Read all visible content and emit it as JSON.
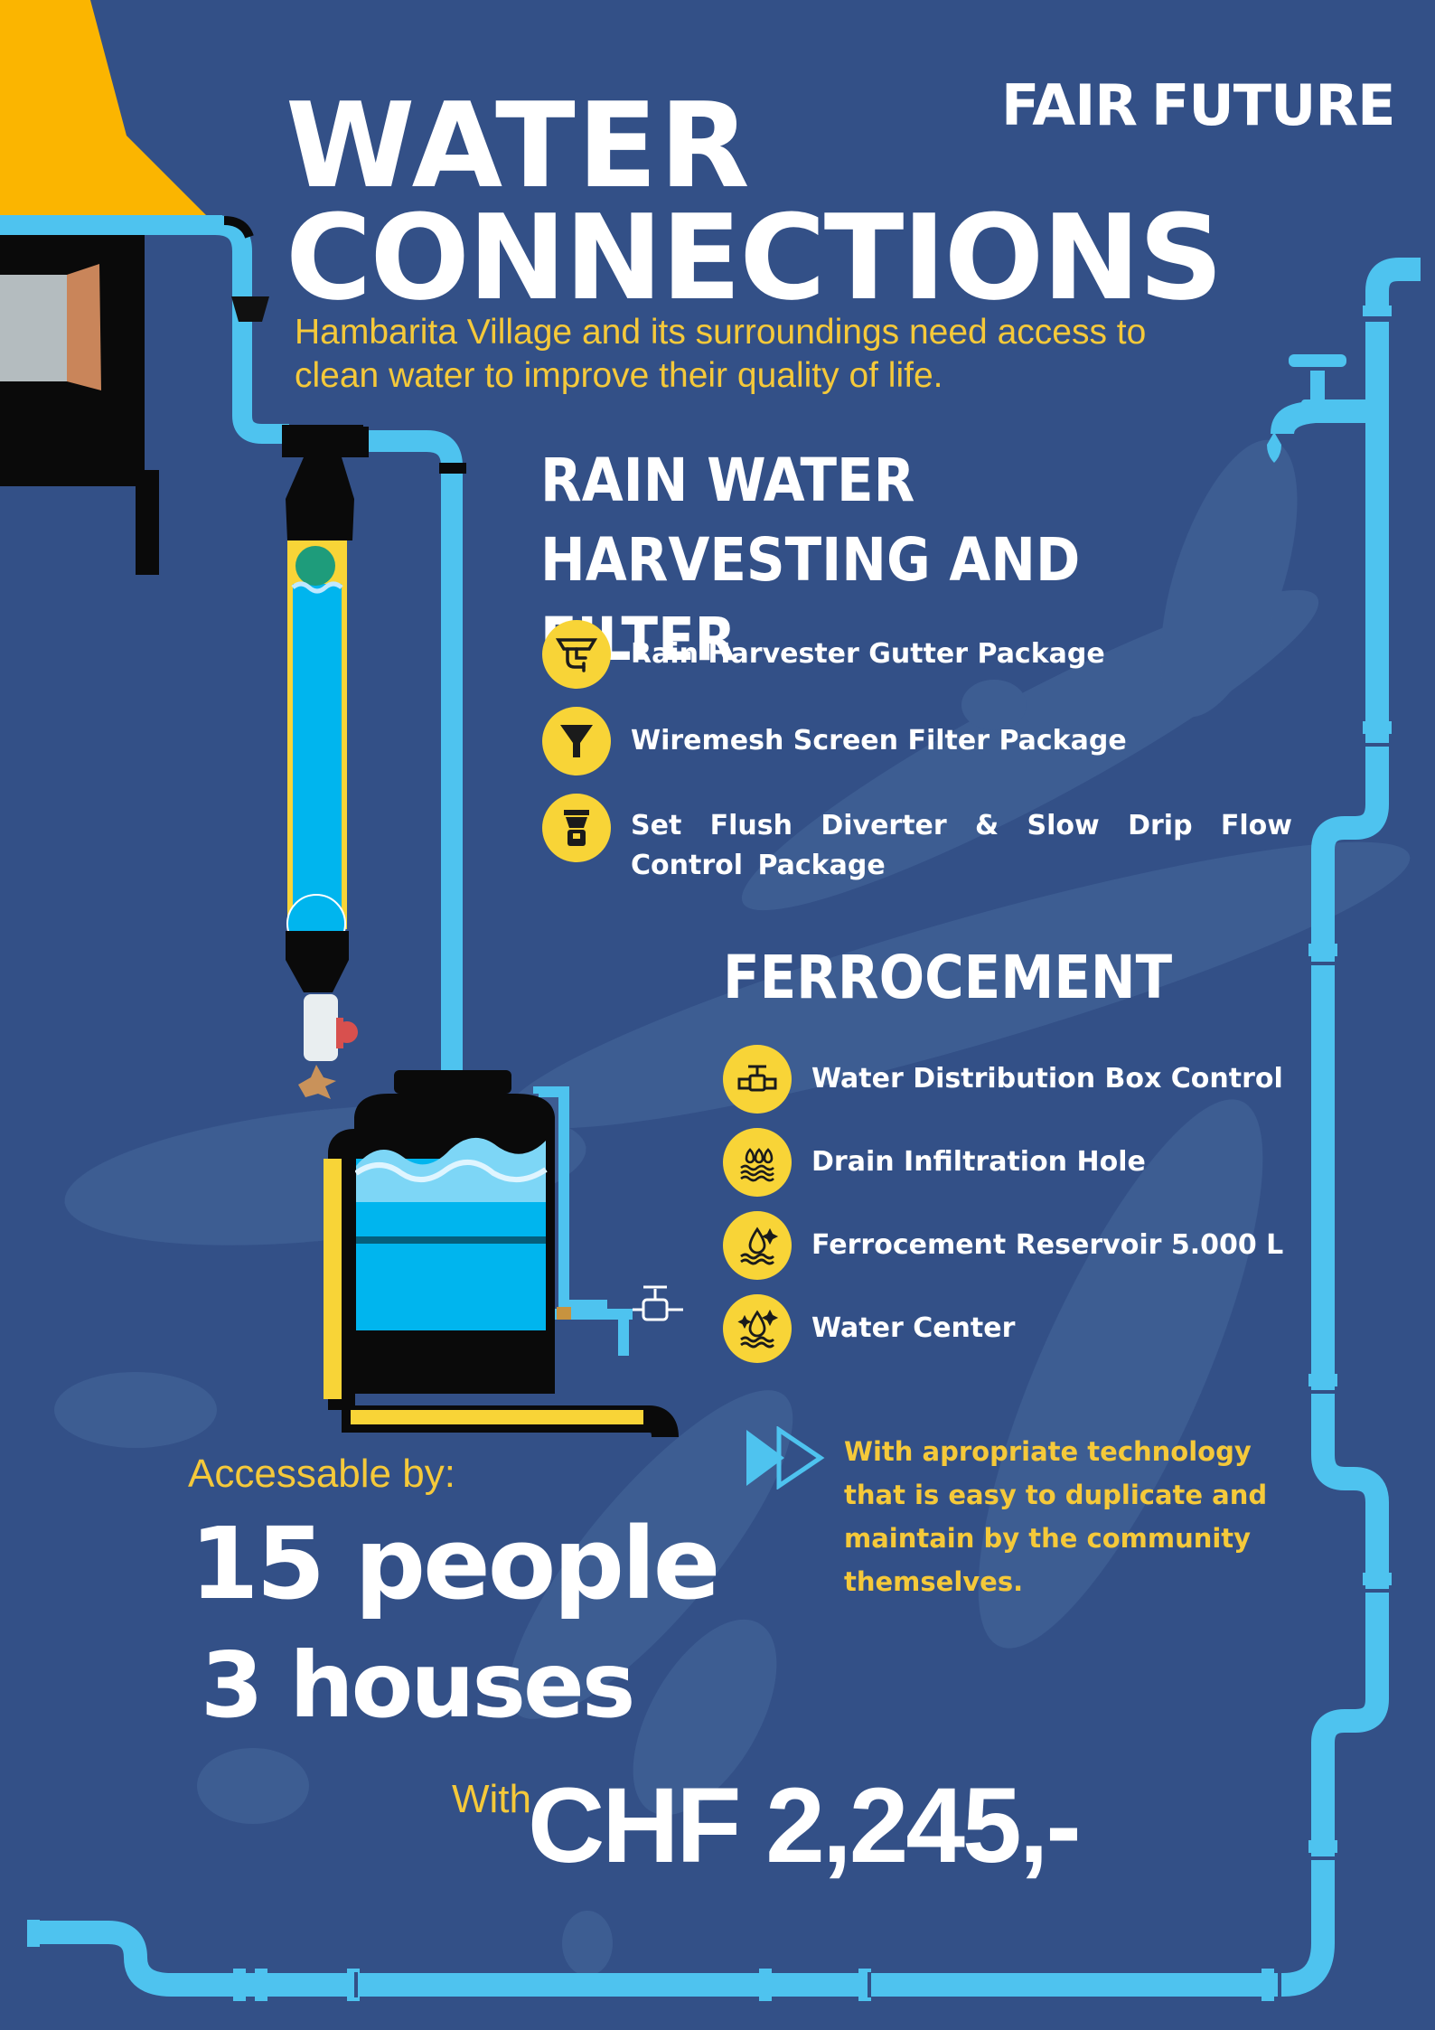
{
  "colors": {
    "background": "#335087",
    "pipe": "#4ec3ef",
    "accent_yellow": "#f8d437",
    "text_yellow": "#f5c93a",
    "white": "#ffffff",
    "roof": "#fbb500"
  },
  "brand": {
    "left": "FAIR",
    "right": "FUTURE",
    "logo_icon": "figure-wave-logo"
  },
  "title": {
    "line1": "WATER",
    "line2": "CONNECTIONS"
  },
  "subtitle": "Hambarita Village and its surroundings need access to clean water to improve their quality of life.",
  "rain_section": {
    "title_line1": "RAIN WATER",
    "title_line2": "HARVESTING AND FILTER",
    "items": [
      {
        "icon": "gutter-icon",
        "label": "Rain Harvester Gutter Package"
      },
      {
        "icon": "funnel-icon",
        "label": "Wiremesh Screen Filter  Package"
      },
      {
        "icon": "flush-diverter-icon",
        "label": "Set Flush Diverter & Slow Drip Flow Control Package"
      }
    ]
  },
  "ferro_section": {
    "title": "FERROCEMENT",
    "items": [
      {
        "icon": "valve-icon",
        "label": "Water Distribution Box Control"
      },
      {
        "icon": "drain-drops-icon",
        "label": "Drain Infiltration Hole"
      },
      {
        "icon": "water-drop-waves-icon",
        "label": "Ferrocement Reservoir 5.000 L"
      },
      {
        "icon": "sparkle-drop-icon",
        "label": "Water Center"
      }
    ]
  },
  "tech_note": "With apropriate technology that is easy to duplicate and maintain by the community themselves.",
  "access": {
    "label": "Accessable by:",
    "people": "15 people",
    "houses": "3 houses"
  },
  "price": {
    "prefix": "With",
    "amount": "CHF 2,245,-"
  }
}
